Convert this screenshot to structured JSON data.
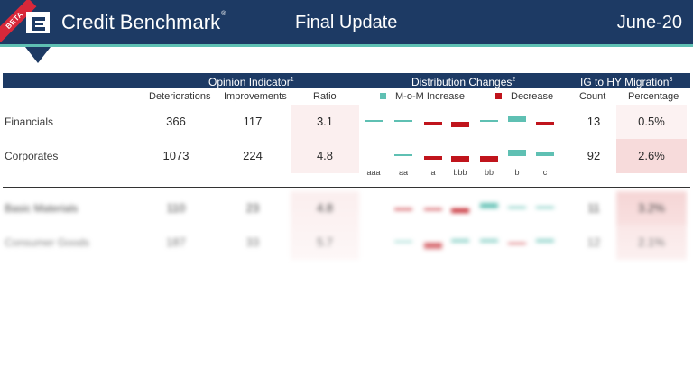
{
  "header": {
    "beta_badge": "BETA",
    "brand": "Credit Benchmark",
    "brand_mark": "®",
    "title": "Final Update",
    "date": "June-20",
    "colors": {
      "navy": "#1d3a64",
      "teal": "#5fc0b3",
      "badge_red": "#d8283a"
    }
  },
  "table": {
    "groups": {
      "opinion": "Opinion Indicator",
      "opinion_note": "1",
      "distribution": "Distribution Changes",
      "distribution_note": "2",
      "migration": "IG to HY Migration",
      "migration_note": "3"
    },
    "columns": {
      "deteriorations": "Deteriorations",
      "improvements": "Improvements",
      "ratio": "Ratio",
      "count": "Count",
      "percentage": "Percentage"
    },
    "legend": {
      "increase": "M-o-M Increase",
      "decrease": "Decrease",
      "increase_color": "#5fc0b3",
      "decrease_color": "#c0141c"
    },
    "grade_labels": [
      "aaa",
      "aa",
      "a",
      "bbb",
      "bb",
      "b",
      "c"
    ],
    "rows": [
      {
        "name": "Financials",
        "deteriorations": "366",
        "improvements": "117",
        "ratio": "3.1",
        "count": "13",
        "percentage": "0.5%",
        "pct_level": 0.15,
        "dist": [
          0.1,
          0.1,
          -0.3,
          -0.5,
          0.1,
          0.5,
          -0.25
        ]
      },
      {
        "name": "Corporates",
        "deteriorations": "1073",
        "improvements": "224",
        "ratio": "4.8",
        "count": "92",
        "percentage": "2.6%",
        "pct_level": 0.8,
        "dist": [
          0,
          0.1,
          -0.3,
          -0.6,
          -0.6,
          0.55,
          0.3
        ]
      },
      {
        "name": "Basic Materials",
        "deteriorations": "110",
        "improvements": "23",
        "ratio": "4.8",
        "count": "11",
        "percentage": "3.2%",
        "pct_level": 0.9,
        "dist": [
          0,
          -0.1,
          -0.1,
          -0.4,
          0.5,
          0.1,
          0.05
        ]
      },
      {
        "name": "Consumer Goods",
        "deteriorations": "187",
        "improvements": "33",
        "ratio": "5.7",
        "count": "12",
        "percentage": "2.1%",
        "pct_level": 0.65,
        "dist": [
          0,
          0.05,
          -0.6,
          0.3,
          0.3,
          -0.2,
          0.35
        ]
      }
    ]
  }
}
